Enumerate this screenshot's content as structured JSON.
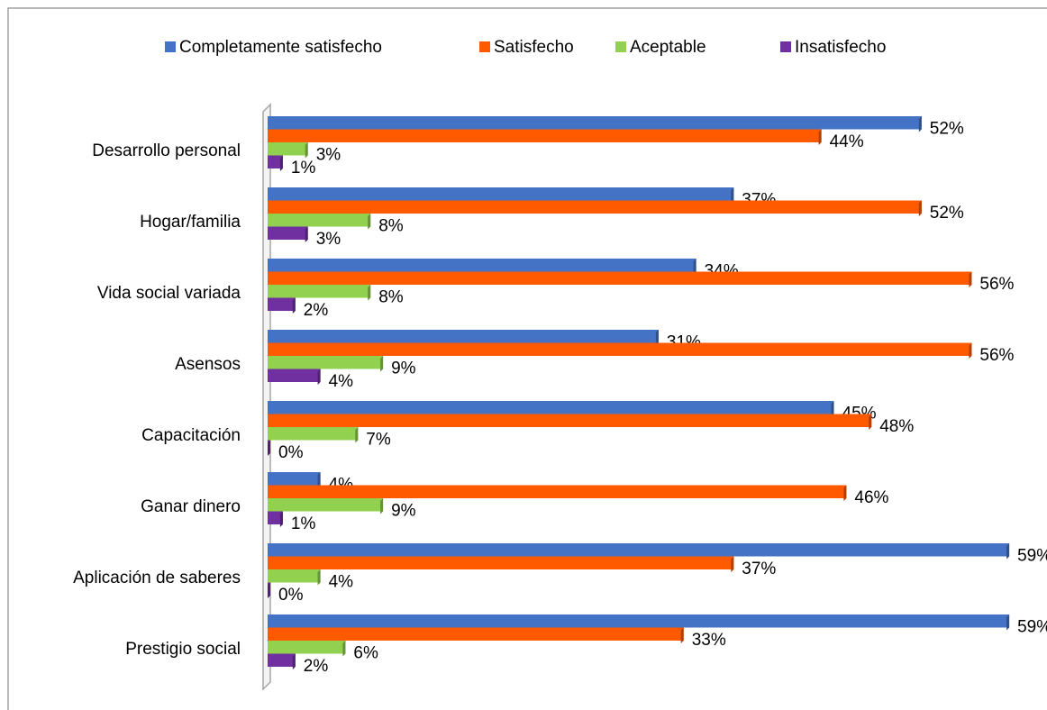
{
  "chart_data": {
    "type": "bar",
    "orientation": "horizontal",
    "categories": [
      "Desarrollo personal",
      "Hogar/familia",
      "Vida social variada",
      "Asensos",
      "Capacitación",
      "Ganar dinero",
      "Aplicación de saberes",
      "Prestigio social"
    ],
    "series": [
      {
        "name": "Completamente satisfecho",
        "color": "#4472c4",
        "values": [
          52,
          37,
          34,
          31,
          45,
          4,
          59,
          59
        ],
        "value_labels": [
          "52%",
          "37%",
          "34%",
          "31%",
          "45%",
          "4%",
          "59%",
          "59%"
        ]
      },
      {
        "name": "Satisfecho",
        "color": "#ff5a00",
        "values": [
          44,
          52,
          56,
          56,
          48,
          46,
          37,
          33
        ],
        "value_labels": [
          "44%",
          "52%",
          "56%",
          "56%",
          "48%",
          "46%",
          "37%",
          "33%"
        ]
      },
      {
        "name": "Aceptable",
        "color": "#92d050",
        "values": [
          3,
          8,
          8,
          9,
          7,
          9,
          4,
          6
        ],
        "value_labels": [
          "3%",
          "8%",
          "8%",
          "9%",
          "7%",
          "9%",
          "4%",
          "6%"
        ]
      },
      {
        "name": "Insatisfecho",
        "color": "#7030a0",
        "values": [
          1,
          3,
          2,
          4,
          0,
          1,
          0,
          2
        ],
        "value_labels": [
          "1%",
          "3%",
          "2%",
          "4%",
          "0%",
          "1%",
          "0%",
          "2%"
        ]
      }
    ],
    "legend": "top"
  }
}
